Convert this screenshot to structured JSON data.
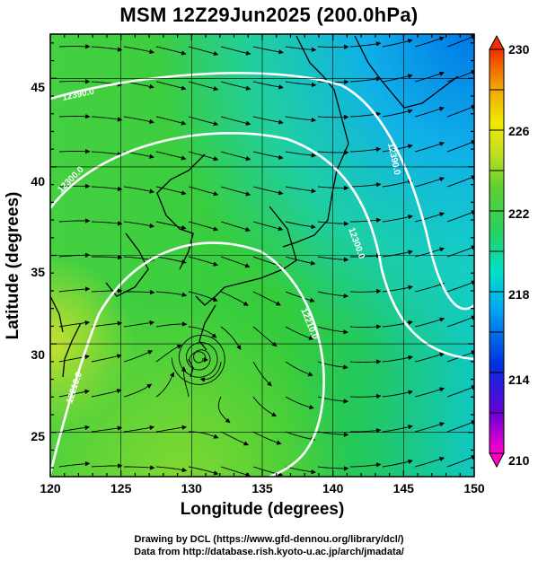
{
  "title": "MSM 12Z29Jun2025 (200.0hPa)",
  "x_axis": {
    "label": "Longitude (degrees)",
    "ticks": [
      "120",
      "125",
      "130",
      "135",
      "140",
      "145",
      "150"
    ],
    "range": [
      120,
      150
    ]
  },
  "y_axis": {
    "label": "Latitude  (degrees)",
    "ticks": [
      "25",
      "30",
      "35",
      "40",
      "45"
    ],
    "range": [
      22.5,
      47.5
    ]
  },
  "colorbar": {
    "ticks": [
      "210",
      "214",
      "218",
      "222",
      "226",
      "230"
    ],
    "range": [
      210,
      230
    ],
    "colors": [
      "#ff00c8",
      "#6a00d8",
      "#0030e0",
      "#00a8f0",
      "#00e0c8",
      "#28d060",
      "#40c840",
      "#a8dc20",
      "#f0e800",
      "#f0a000",
      "#f04000"
    ]
  },
  "contours": [
    {
      "label": "12210.0"
    },
    {
      "label": "12300.0"
    },
    {
      "label": "12390.0"
    }
  ],
  "footer": {
    "line1": "Drawing by DCL (https://www.gfd-dennou.org/library/dcl/)",
    "line2": "Data from http://database.rish.kyoto-u.ac.jp/arch/jmadata/"
  },
  "colors": {
    "field_main": "#3ccf3c",
    "field_cool": "#18c8d8",
    "contour": "#ffffff",
    "streamline": "#000000"
  }
}
